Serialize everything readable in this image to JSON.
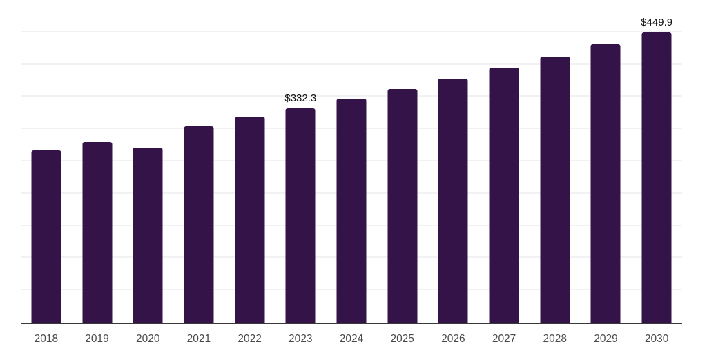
{
  "chart_data": {
    "type": "bar",
    "categories": [
      "2018",
      "2019",
      "2020",
      "2021",
      "2022",
      "2023",
      "2024",
      "2025",
      "2026",
      "2027",
      "2028",
      "2029",
      "2030"
    ],
    "values": [
      267.2,
      279.8,
      271.0,
      304.8,
      319.3,
      332.3,
      347.0,
      362.4,
      378.5,
      395.3,
      412.8,
      431.1,
      449.9
    ],
    "data_labels": [
      {
        "index": 5,
        "text": "$332.3"
      },
      {
        "index": 12,
        "text": "$449.9"
      }
    ],
    "title": "",
    "xlabel": "",
    "ylabel": "",
    "ylim": [
      0,
      500
    ],
    "grid_step": 50,
    "grid": true,
    "legend": false,
    "colors": {
      "bar": "#341349",
      "grid_line": "#f2f2f4",
      "axis_line": "#3a3a3a",
      "tick_label": "#4a4a4a",
      "data_label": "#111111",
      "background": "#ffffff"
    }
  }
}
